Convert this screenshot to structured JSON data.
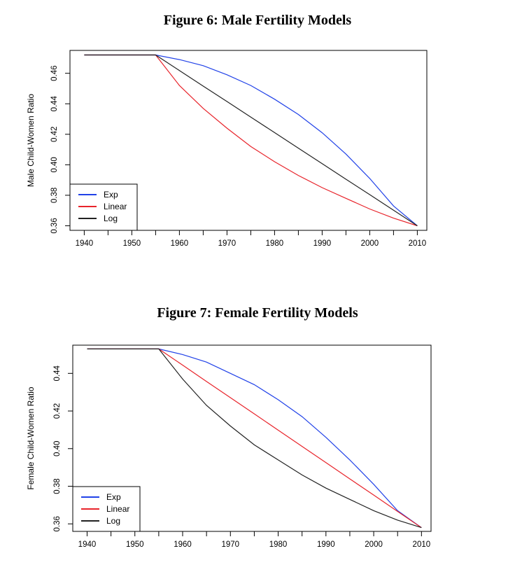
{
  "figures": [
    {
      "title": "Figure 6: Male Fertility Models",
      "chart_data": {
        "type": "line",
        "title": "Figure 6: Male Fertility Models",
        "xlabel": "",
        "ylabel": "Male Child-Women Ratio",
        "xlim": [
          1937,
          2012
        ],
        "ylim": [
          0.357,
          0.475
        ],
        "xticks": [
          1940,
          1950,
          1960,
          1970,
          1980,
          1990,
          2000,
          2010
        ],
        "yticks": [
          0.36,
          0.38,
          0.4,
          0.42,
          0.44,
          0.46
        ],
        "ytick_labels": [
          "0.36",
          "0.38",
          "0.40",
          "0.42",
          "0.44",
          "0.46"
        ],
        "grid": false,
        "legend_position": "bottom-left",
        "x": [
          1940,
          1945,
          1950,
          1955,
          1960,
          1965,
          1970,
          1975,
          1980,
          1985,
          1990,
          1995,
          2000,
          2005,
          2010
        ],
        "series": [
          {
            "name": "Exp",
            "color": "#2142e8",
            "values": [
              0.472,
              0.472,
              0.472,
              0.472,
              0.469,
              0.465,
              0.459,
              0.452,
              0.443,
              0.433,
              0.421,
              0.407,
              0.391,
              0.373,
              0.36
            ]
          },
          {
            "name": "Linear",
            "color": "#e8242b",
            "values": [
              0.472,
              0.472,
              0.472,
              0.472,
              0.452,
              0.437,
              0.424,
              0.412,
              0.402,
              0.393,
              0.385,
              0.378,
              0.371,
              0.365,
              0.36
            ]
          },
          {
            "name": "Log",
            "color": "#222222",
            "values": [
              0.472,
              0.472,
              0.472,
              0.472,
              0.4618,
              0.4516,
              0.4415,
              0.4313,
              0.4211,
              0.4109,
              0.4007,
              0.3905,
              0.3804,
              0.3702,
              0.36
            ]
          }
        ]
      }
    },
    {
      "title": "Figure 7: Female Fertility Models",
      "chart_data": {
        "type": "line",
        "title": "Figure 7: Female Fertility Models",
        "xlabel": "",
        "ylabel": "Female Child-Women Ratio",
        "xlim": [
          1937,
          2012
        ],
        "ylim": [
          0.356,
          0.455
        ],
        "xticks": [
          1940,
          1950,
          1960,
          1970,
          1980,
          1990,
          2000,
          2010
        ],
        "yticks": [
          0.36,
          0.38,
          0.4,
          0.42,
          0.44
        ],
        "ytick_labels": [
          "0.36",
          "0.38",
          "0.40",
          "0.42",
          "0.44"
        ],
        "grid": false,
        "legend_position": "bottom-left",
        "x": [
          1940,
          1945,
          1950,
          1955,
          1960,
          1965,
          1970,
          1975,
          1980,
          1985,
          1990,
          1995,
          2000,
          2005,
          2010
        ],
        "series": [
          {
            "name": "Exp",
            "color": "#2142e8",
            "values": [
              0.453,
              0.453,
              0.453,
              0.453,
              0.45,
              0.446,
              0.44,
              0.434,
              0.426,
              0.417,
              0.406,
              0.394,
              0.381,
              0.367,
              0.358
            ]
          },
          {
            "name": "Linear",
            "color": "#e8242b",
            "values": [
              0.453,
              0.453,
              0.453,
              0.453,
              0.4444,
              0.4357,
              0.4271,
              0.4185,
              0.4098,
              0.4012,
              0.3926,
              0.3839,
              0.3753,
              0.3666,
              0.358
            ]
          },
          {
            "name": "Log",
            "color": "#222222",
            "values": [
              0.453,
              0.453,
              0.453,
              0.453,
              0.437,
              0.423,
              0.412,
              0.402,
              0.394,
              0.386,
              0.379,
              0.373,
              0.367,
              0.362,
              0.358
            ]
          }
        ]
      }
    }
  ]
}
